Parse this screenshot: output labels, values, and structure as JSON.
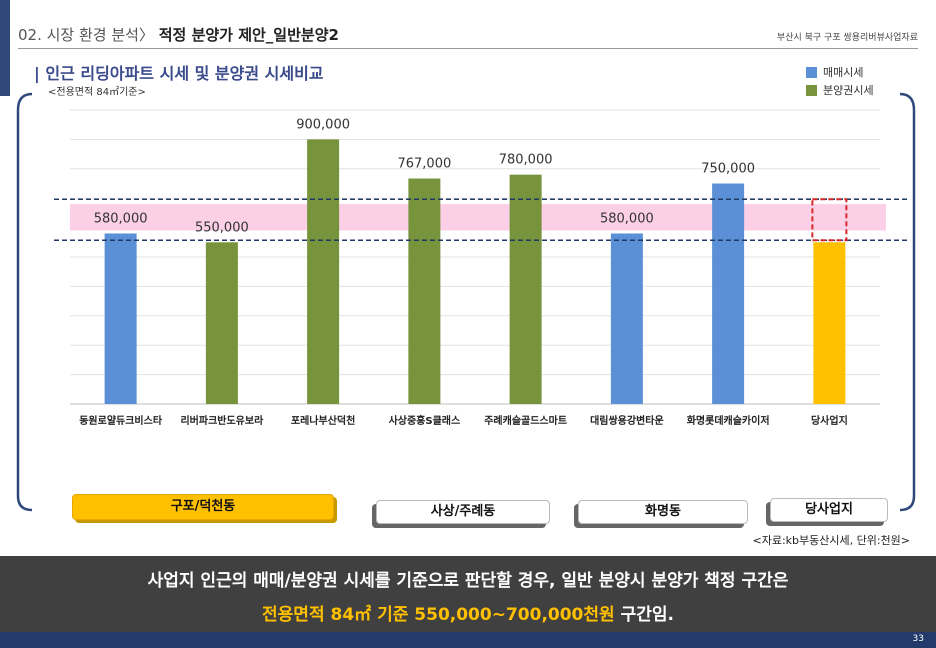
{
  "header": {
    "section": "02. 시장 환경 분석〉",
    "title": "적정 분양가 제안_일반분양2",
    "source": "부산시 북구 구포 쌍용리버뷰사업자료"
  },
  "chart_title": "| 인근 리딩아파트 시세 및 분양권 시세비교",
  "chart_subtitle": "<전용면적 84㎡기준>",
  "legend": [
    {
      "label": "매매시세",
      "color": "#5b8fd6"
    },
    {
      "label": "분양권시세",
      "color": "#77933c"
    }
  ],
  "chart_data": {
    "type": "bar",
    "categories": [
      "동원로얄듀크비스타",
      "리버파크반도유보라",
      "포레나부산덕천",
      "사상중흥S클래스",
      "주례캐슬골드스마트",
      "대림쌍용강변타운",
      "화명롯데캐슬카이저",
      "당사업지"
    ],
    "values": [
      580000,
      550000,
      900000,
      767000,
      780000,
      580000,
      750000,
      null
    ],
    "value_labels": [
      "580,000",
      "550,000",
      "900,000",
      "767,000",
      "780,000",
      "580,000",
      "750,000",
      ""
    ],
    "bar_types": [
      "매매시세",
      "분양권시세",
      "분양권시세",
      "분양권시세",
      "분양권시세",
      "매매시세",
      "매매시세",
      "당사업지"
    ],
    "colors": {
      "매매시세": "#5b8fd6",
      "분양권시세": "#77933c",
      "당사업지": "#ffc000"
    },
    "site_bar_value": 550000,
    "proposed_range": [
      550000,
      700000
    ],
    "reference_band": [
      590000,
      680000
    ],
    "ylim": [
      0,
      1000000
    ],
    "grid": true,
    "legend_position": "top-right"
  },
  "regions": [
    "구포/덕천동",
    "사상/주례동",
    "화명동",
    "당사업지"
  ],
  "source_note": "<자료:kb부동산시세,  단위:천원>",
  "conclusion": {
    "line1": "사업지 인근의 매매/분양권 시세를 기준으로 판단할 경우, 일반 분양시 분양가 책정 구간은",
    "line2_highlight": "전용면적 84㎡ 기준 550,000~700,000천원",
    "line2_tail": " 구간임."
  },
  "page_number": "33"
}
